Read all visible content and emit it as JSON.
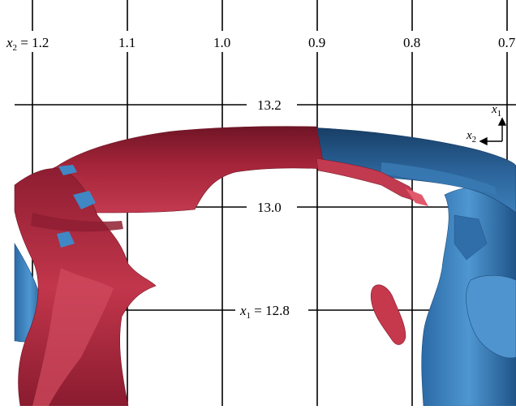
{
  "x2_axis": {
    "var": "x",
    "sub": "2",
    "eq": "=",
    "ticks": [
      "1.2",
      "1.1",
      "1.0",
      "0.9",
      "0.8",
      "0.7"
    ]
  },
  "x1_axis": {
    "var": "x",
    "sub": "1",
    "eq": "=",
    "ticks": [
      "13.2",
      "13.0",
      "12.8"
    ]
  },
  "triad": {
    "x1": {
      "var": "x",
      "sub": "1"
    },
    "x2": {
      "var": "x",
      "sub": "2"
    }
  },
  "colors": {
    "red_surface": "#b5283d",
    "red_dark": "#7e1a2c",
    "blue_surface": "#3f88c5",
    "blue_dark": "#1d4d7c"
  }
}
